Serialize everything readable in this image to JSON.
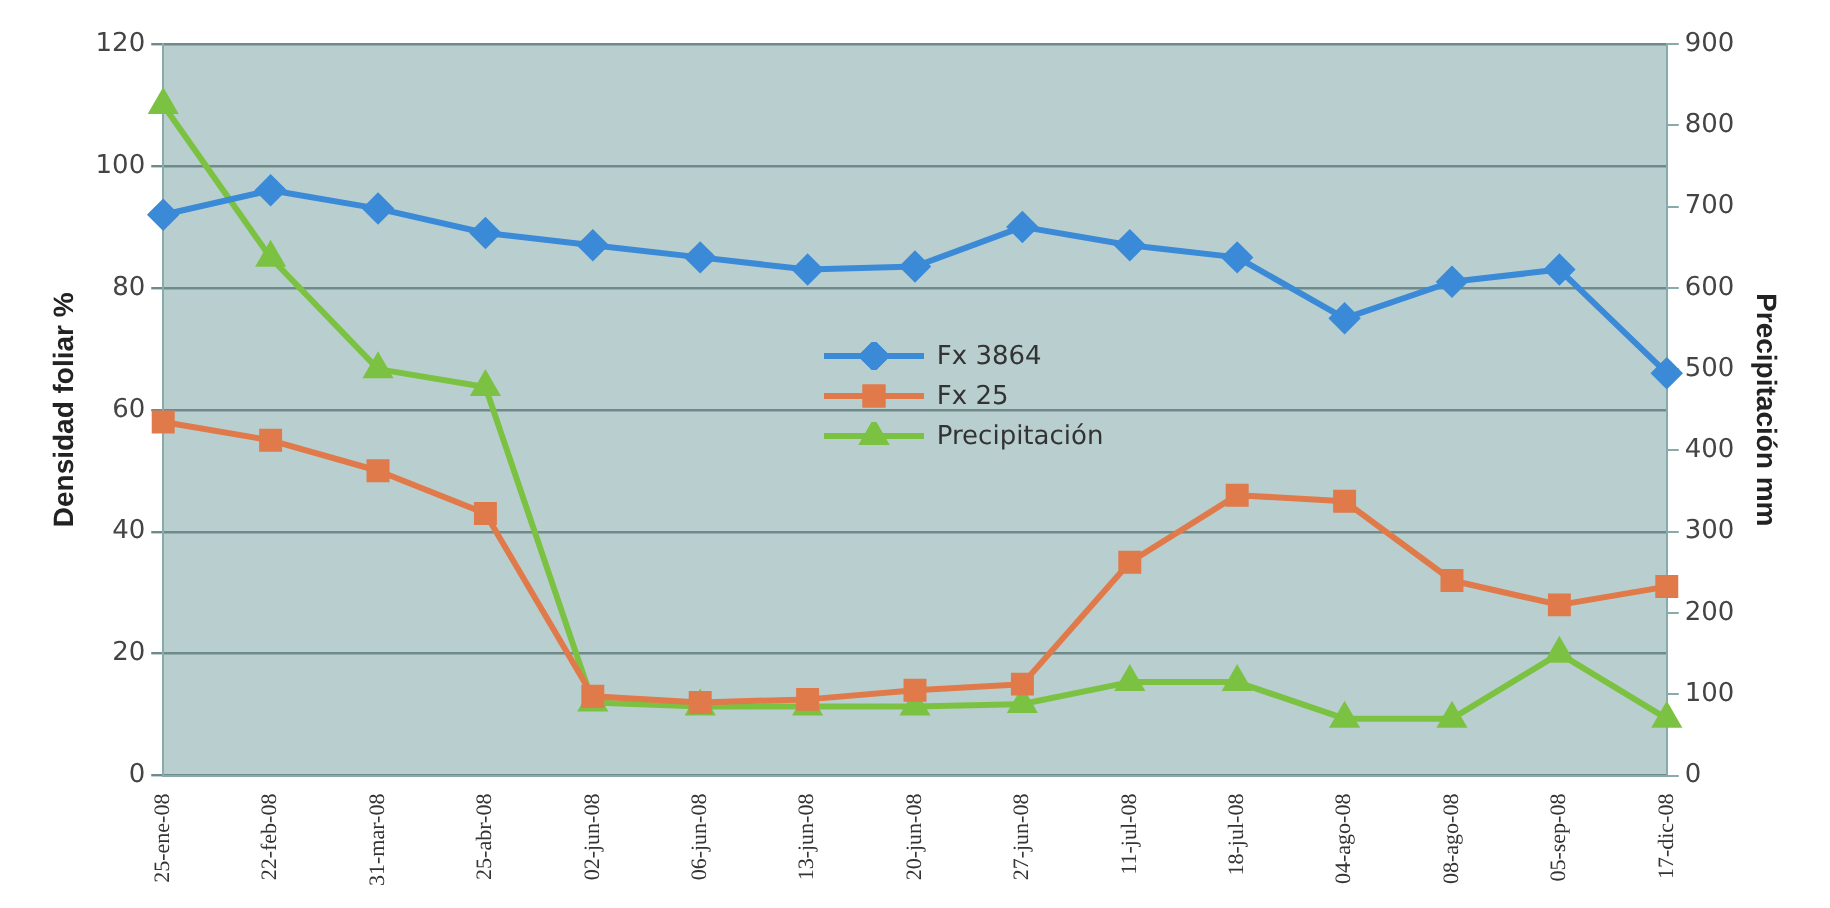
{
  "chart_data": {
    "type": "line",
    "ylabel": "Densidad foliar %",
    "y2label": "Precipitación mm",
    "categories": [
      "25-ene-08",
      "22-feb-08",
      "31-mar-08",
      "25-abr-08",
      "02-jun-08",
      "06-jun-08",
      "13-jun-08",
      "20-jun-08",
      "27-jun-08",
      "11-jul-08",
      "18-jul-08",
      "04-ago-08",
      "08-ago-08",
      "05-sep-08",
      "17-dic-08"
    ],
    "series": [
      {
        "name": "Fx 3864",
        "color": "#3a8ad8",
        "marker": "diamond",
        "values": [
          92,
          96,
          93,
          89,
          87,
          85,
          83,
          83.5,
          90,
          87,
          85,
          75,
          81,
          83,
          66
        ]
      },
      {
        "name": "Fx 25",
        "color": "#e07a4a",
        "marker": "square",
        "values": [
          58,
          55,
          50,
          43,
          13,
          12,
          12.5,
          14,
          15,
          35,
          46,
          45,
          32,
          28,
          31
        ]
      },
      {
        "name": "Precipitación",
        "color": "#7cc242",
        "marker": "triangle",
        "axis": "y2",
        "values": [
          825,
          637,
          500,
          478,
          90,
          85,
          85,
          85,
          88,
          115,
          115,
          70,
          70,
          150,
          70
        ]
      }
    ],
    "ylim": [
      0,
      120
    ],
    "yticks": [
      0,
      20,
      40,
      60,
      80,
      100,
      120
    ],
    "y2lim": [
      0,
      900
    ],
    "y2ticks": [
      0,
      100,
      200,
      300,
      400,
      500,
      600,
      700,
      800,
      900
    ],
    "grid": "y",
    "legend": "center"
  }
}
